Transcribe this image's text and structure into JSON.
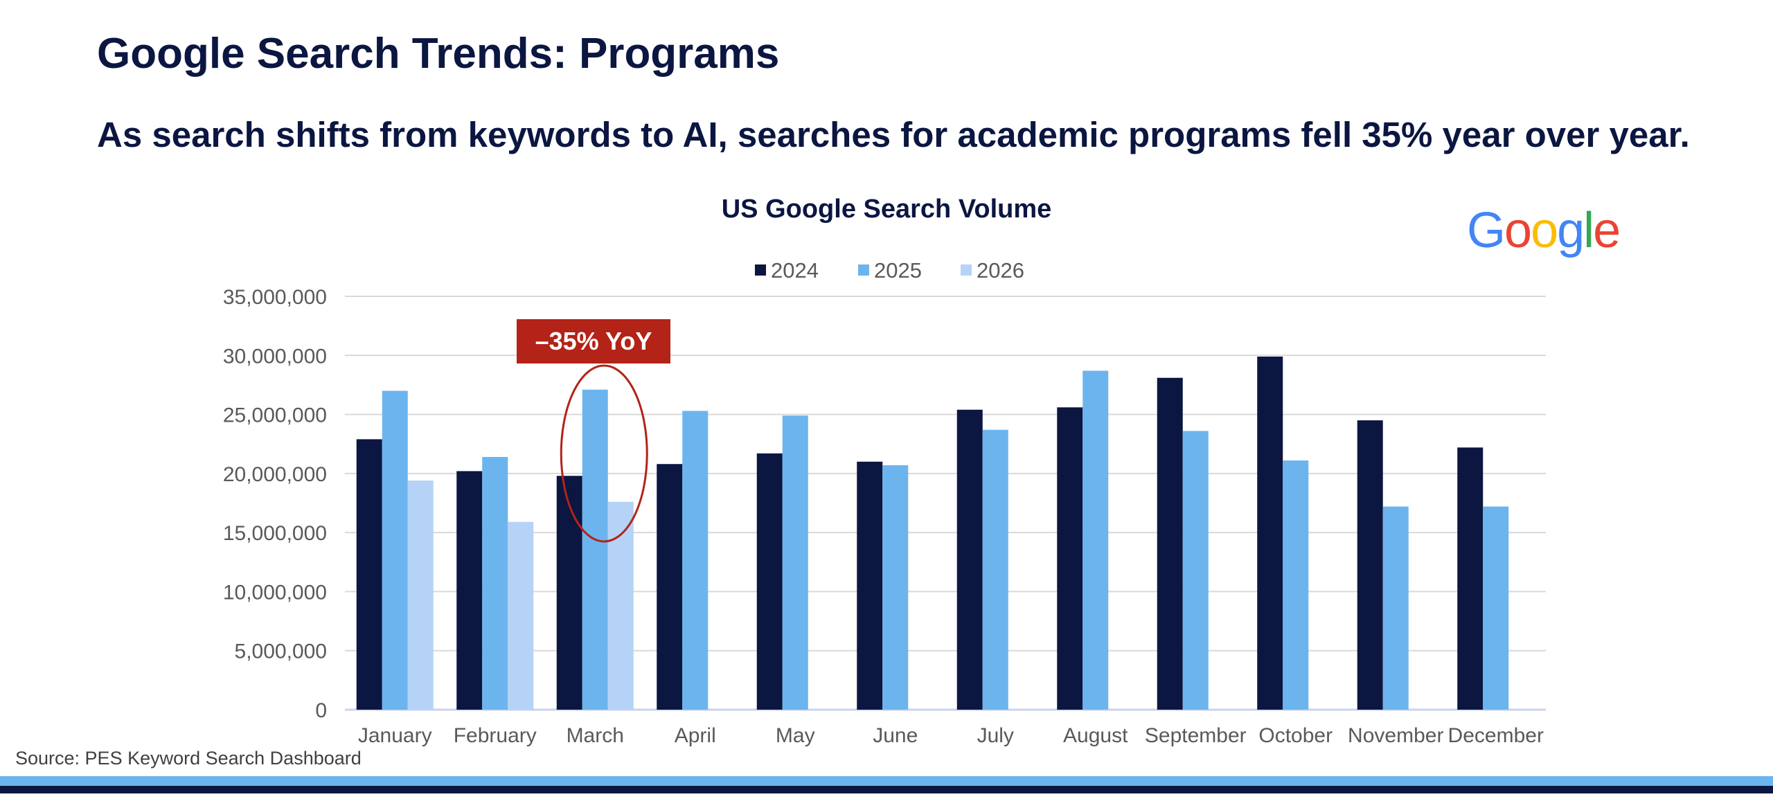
{
  "header": {
    "title": "Google Search Trends:  Programs",
    "subtitle": "As search shifts from keywords to AI, searches for academic programs fell 35% year over year."
  },
  "logo": {
    "letters": [
      "G",
      "o",
      "o",
      "g",
      "l",
      "e"
    ],
    "colors": [
      "#4285F4",
      "#EA4335",
      "#FBBC05",
      "#4285F4",
      "#34A853",
      "#EA4335"
    ]
  },
  "annotation": {
    "label": "–35% YoY",
    "category": "March",
    "color": "#b32318"
  },
  "footer": {
    "source": "Source:  PES Keyword Search Dashboard"
  },
  "chart_data": {
    "type": "bar",
    "title": "US Google Search Volume",
    "xlabel": "",
    "ylabel": "",
    "ylim": [
      0,
      35000000
    ],
    "yticks": [
      0,
      5000000,
      10000000,
      15000000,
      20000000,
      25000000,
      30000000,
      35000000
    ],
    "grid": true,
    "legend_position": "top-center",
    "categories": [
      "January",
      "February",
      "March",
      "April",
      "May",
      "June",
      "July",
      "August",
      "September",
      "October",
      "November",
      "December"
    ],
    "series": [
      {
        "name": "2024",
        "color": "#0b1641",
        "values": [
          22900000,
          20200000,
          19800000,
          20800000,
          21700000,
          21000000,
          25400000,
          25600000,
          28100000,
          29900000,
          24500000,
          22200000
        ]
      },
      {
        "name": "2025",
        "color": "#6cb4ee",
        "values": [
          27000000,
          21400000,
          27100000,
          25300000,
          24900000,
          20700000,
          23700000,
          28700000,
          23600000,
          21100000,
          17200000,
          17200000
        ]
      },
      {
        "name": "2026",
        "color": "#b5d3f6",
        "values": [
          19400000,
          15900000,
          17600000,
          null,
          null,
          null,
          null,
          null,
          null,
          null,
          null,
          null
        ]
      }
    ]
  }
}
